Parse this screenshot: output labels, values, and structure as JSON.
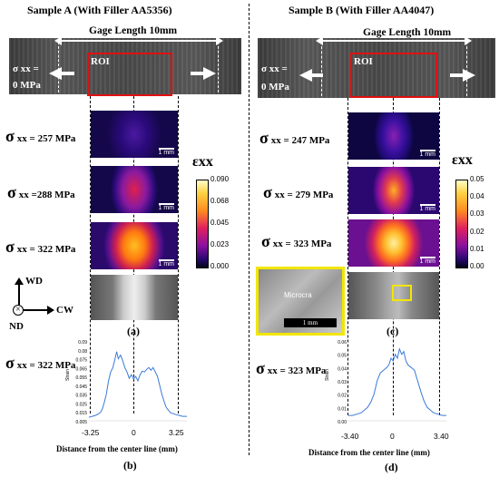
{
  "sample_a": {
    "title": "Sample A (With Filler AA5356)",
    "gage": "Gage Length 10mm",
    "roi": "ROI",
    "sigma_zero": "σ xx =",
    "mpa_zero": "0 MPa",
    "levels": [
      {
        "label": "xx = 257 MPa"
      },
      {
        "label": "xx =288 MPa"
      },
      {
        "label": "xx = 322 MPa"
      }
    ],
    "scale": "1 mm",
    "colorbar_ticks": [
      "0.090",
      "0.068",
      "0.045",
      "0.023",
      "0.000"
    ],
    "panel_label": "(a)",
    "plot_sigma": "xx = 322 MPa",
    "plot_label": "(b)"
  },
  "sample_b": {
    "title": "Sample B (With Filler AA4047)",
    "gage": "Gage Length 10mm",
    "roi": "ROI",
    "sigma_zero": "σ xx =",
    "mpa_zero": "0 MPa",
    "levels": [
      {
        "label": "xx = 247 MPa"
      },
      {
        "label": "xx = 279 MPa"
      },
      {
        "label": "xx = 323 MPa"
      }
    ],
    "scale": "1 mm",
    "colorbar_ticks": [
      "0.05",
      "0.04",
      "0.03",
      "0.02",
      "0.01",
      "0.00"
    ],
    "inset_text": "Microcra",
    "inset_scale": "1 mm",
    "panel_label": "(c)",
    "plot_sigma": "xx = 323 MPa",
    "plot_label": "(d)"
  },
  "common": {
    "sigma": "σ",
    "strain_symbol": "εxx",
    "axes": {
      "wd": "WD",
      "cw": "CW",
      "nd": "ND"
    },
    "xlabel": "Distance from the center line (mm)"
  },
  "chart_data": [
    {
      "type": "line",
      "xlabel": "Distance from the center line (mm)",
      "ylabel": "Strain",
      "xticks": [
        "-3.25",
        "0",
        "3.25"
      ],
      "yticks": [
        "0.09",
        "0.08",
        "0.075",
        "0.065",
        "0.055",
        "0.045",
        "0.035",
        "0.025",
        "0.015",
        "0.005"
      ],
      "xlim": [
        -4.5,
        4.5
      ],
      "ylim": [
        0,
        0.09
      ],
      "x": [
        -4.5,
        -4.2,
        -3.9,
        -3.6,
        -3.4,
        -3.25,
        -3.1,
        -2.9,
        -2.7,
        -2.5,
        -2.3,
        -2.1,
        -1.95,
        -1.8,
        -1.6,
        -1.4,
        -1.2,
        -1.0,
        -0.8,
        -0.6,
        -0.4,
        -0.2,
        0,
        0.2,
        0.4,
        0.6,
        0.8,
        1.0,
        1.2,
        1.4,
        1.6,
        1.8,
        2.0,
        2.2,
        2.4,
        2.6,
        2.8,
        3.0,
        3.25,
        3.5,
        3.8,
        4.1,
        4.5
      ],
      "values": [
        0.004,
        0.005,
        0.006,
        0.008,
        0.01,
        0.014,
        0.02,
        0.03,
        0.045,
        0.055,
        0.06,
        0.07,
        0.078,
        0.07,
        0.074,
        0.068,
        0.06,
        0.055,
        0.048,
        0.052,
        0.047,
        0.05,
        0.045,
        0.052,
        0.056,
        0.055,
        0.058,
        0.06,
        0.057,
        0.06,
        0.055,
        0.05,
        0.04,
        0.03,
        0.022,
        0.015,
        0.012,
        0.009,
        0.008,
        0.007,
        0.006,
        0.005,
        0.005
      ]
    },
    {
      "type": "line",
      "xlabel": "Distance from the center line (mm)",
      "ylabel": "Strain",
      "xticks": [
        "-3.40",
        "0",
        "3.40"
      ],
      "yticks": [
        "0.06",
        "0.05",
        "0.04",
        "0.03",
        "0.02",
        "0.01",
        "0.00"
      ],
      "xlim": [
        -4.6,
        4.6
      ],
      "ylim": [
        0,
        0.06
      ],
      "x": [
        -4.6,
        -4.2,
        -3.8,
        -3.4,
        -3.1,
        -2.8,
        -2.5,
        -2.2,
        -1.9,
        -1.6,
        -1.3,
        -1.0,
        -0.8,
        -0.6,
        -0.4,
        -0.2,
        0,
        0.2,
        0.4,
        0.6,
        0.8,
        1.0,
        1.3,
        1.6,
        1.9,
        2.2,
        2.5,
        2.8,
        3.1,
        3.4,
        3.8,
        4.2,
        4.6
      ],
      "values": [
        0.004,
        0.004,
        0.005,
        0.006,
        0.008,
        0.01,
        0.014,
        0.02,
        0.03,
        0.036,
        0.038,
        0.04,
        0.042,
        0.047,
        0.045,
        0.05,
        0.047,
        0.054,
        0.05,
        0.052,
        0.045,
        0.042,
        0.04,
        0.038,
        0.03,
        0.022,
        0.015,
        0.01,
        0.008,
        0.006,
        0.005,
        0.004,
        0.004
      ]
    }
  ]
}
